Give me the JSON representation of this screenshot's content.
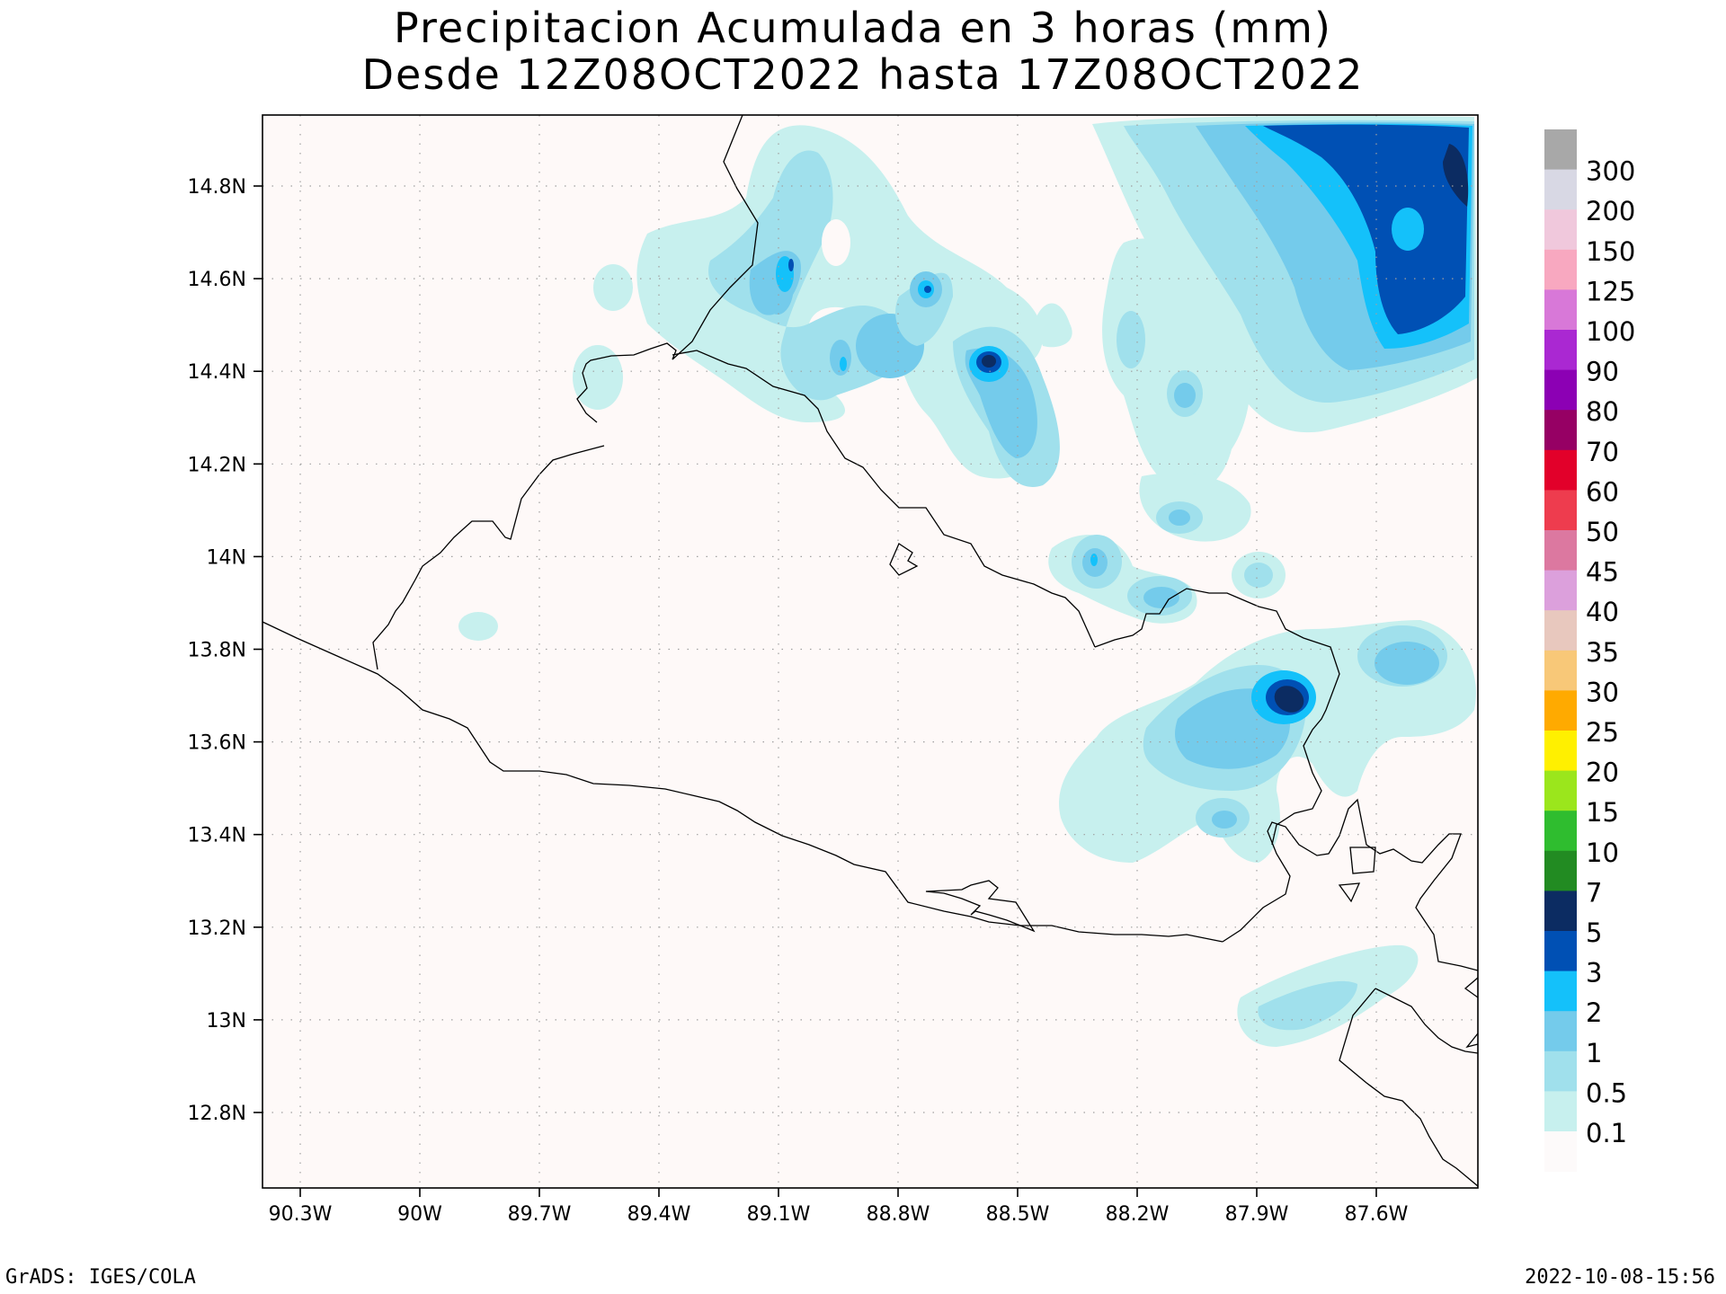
{
  "title": "Precipitacion Acumulada en 3 horas (mm)",
  "subtitle": "Desde 12Z08OCT2022 hasta 17Z08OCT2022",
  "footer": {
    "credit": "GrADS: IGES/COLA",
    "timestamp": "2022-10-08-15:56"
  },
  "axes": {
    "lon_ticks": [
      "90.3W",
      "90W",
      "89.7W",
      "89.4W",
      "89.1W",
      "88.8W",
      "88.5W",
      "88.2W",
      "87.9W",
      "87.6W"
    ],
    "lat_ticks": [
      "14.8N",
      "14.6N",
      "14.4N",
      "14.2N",
      "14N",
      "13.8N",
      "13.6N",
      "13.4N",
      "13.2N",
      "13N",
      "12.8N"
    ]
  },
  "legend": {
    "levels": [
      "0.1",
      "0.5",
      "1",
      "2",
      "3",
      "5",
      "7",
      "10",
      "15",
      "20",
      "25",
      "30",
      "35",
      "40",
      "45",
      "50",
      "60",
      "70",
      "80",
      "90",
      "100",
      "125",
      "150",
      "200",
      "300"
    ],
    "colors": [
      "#fdfafa",
      "#c7f0ee",
      "#a0e0ec",
      "#74cbeb",
      "#14c1fa",
      "#0050b4",
      "#0c2c62",
      "#228b22",
      "#2fbd2f",
      "#9be61c",
      "#fff000",
      "#ffaa00",
      "#f8c878",
      "#e8c8be",
      "#dca0dc",
      "#dc78a0",
      "#ee3c4e",
      "#e2002a",
      "#960064",
      "#8c00b4",
      "#aa28d2",
      "#d878d8",
      "#f8a8c0",
      "#f0c8dc",
      "#d8d8e4",
      "#a8a8a8"
    ]
  },
  "map": {
    "background": "#fef9f8",
    "region": "El Salvador"
  }
}
